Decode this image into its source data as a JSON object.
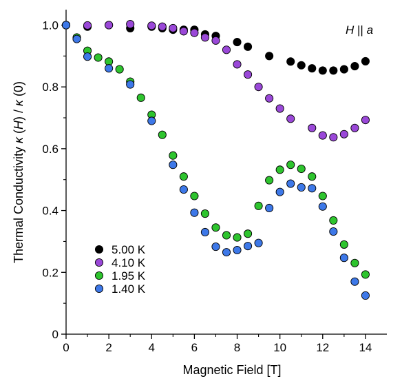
{
  "chart_data": {
    "type": "scatter",
    "xlabel": "Magnetic Field [T]",
    "ylabel_parts": [
      "Thermal Conductivity  ",
      "κ",
      " (",
      "H",
      ") / ",
      "κ",
      " (0)"
    ],
    "annotation": "H || a",
    "xlim": [
      0,
      15
    ],
    "ylim": [
      0,
      1.05
    ],
    "xticks": [
      0,
      2,
      4,
      6,
      8,
      10,
      12,
      14
    ],
    "yticks": [
      0,
      0.2,
      0.4,
      0.6,
      0.8,
      1.0
    ],
    "xtick_labels": [
      "0",
      "2",
      "4",
      "6",
      "8",
      "10",
      "12",
      "14"
    ],
    "ytick_labels": [
      "0",
      "0.2",
      "0.4",
      "0.6",
      "0.8",
      "1.0"
    ],
    "grid": false,
    "legend_position": "bottom-left",
    "series": [
      {
        "name": "5.00 K",
        "color": "#000000",
        "x": [
          0,
          1,
          2,
          3,
          4,
          4.5,
          5,
          5.5,
          6,
          6.5,
          7,
          8,
          8.5,
          9.5,
          10.5,
          11,
          11.5,
          12,
          12.5,
          13,
          13.5,
          14
        ],
        "y": [
          1.0,
          0.995,
          1.0,
          0.99,
          0.995,
          0.99,
          0.985,
          0.985,
          0.985,
          0.97,
          0.965,
          0.945,
          0.93,
          0.9,
          0.882,
          0.87,
          0.86,
          0.853,
          0.853,
          0.857,
          0.867,
          0.883
        ]
      },
      {
        "name": "4.10 K",
        "color": "#9a48d8",
        "x": [
          0,
          1,
          2,
          3,
          4,
          4.5,
          5,
          5.5,
          6,
          6.5,
          7,
          7.5,
          8,
          8.5,
          9,
          9.5,
          10,
          10.5,
          11.5,
          12,
          12.5,
          13,
          13.5,
          14
        ],
        "y": [
          1.0,
          0.999,
          1.0,
          1.003,
          0.998,
          0.995,
          0.99,
          0.98,
          0.975,
          0.96,
          0.95,
          0.92,
          0.873,
          0.84,
          0.8,
          0.763,
          0.73,
          0.697,
          0.667,
          0.643,
          0.637,
          0.647,
          0.667,
          0.693
        ]
      },
      {
        "name": "1.95 K",
        "color": "#2ec42e",
        "x": [
          0,
          0.5,
          1,
          1.5,
          2,
          2.5,
          3,
          3.5,
          4,
          4.5,
          5,
          5.5,
          6,
          6.5,
          7,
          7.5,
          8,
          8.5,
          9,
          9.5,
          10,
          10.5,
          11,
          11.5,
          12,
          12.5,
          13,
          13.5,
          14
        ],
        "y": [
          1.0,
          0.96,
          0.917,
          0.895,
          0.882,
          0.857,
          0.817,
          0.765,
          0.71,
          0.645,
          0.578,
          0.51,
          0.447,
          0.39,
          0.345,
          0.32,
          0.313,
          0.325,
          0.415,
          0.498,
          0.532,
          0.548,
          0.535,
          0.51,
          0.447,
          0.368,
          0.29,
          0.23,
          0.193
        ]
      },
      {
        "name": "1.40 K",
        "color": "#3d78e8",
        "x": [
          0,
          0.5,
          1,
          2,
          3,
          4,
          5,
          5.5,
          6,
          6.5,
          7,
          7.5,
          8,
          8.5,
          9,
          9.5,
          10,
          10.5,
          11,
          11.5,
          12,
          12.5,
          13,
          13.5,
          14
        ],
        "y": [
          1.0,
          0.955,
          0.898,
          0.86,
          0.808,
          0.69,
          0.548,
          0.468,
          0.393,
          0.33,
          0.283,
          0.265,
          0.272,
          0.285,
          0.295,
          0.408,
          0.46,
          0.487,
          0.475,
          0.472,
          0.413,
          0.332,
          0.247,
          0.17,
          0.125
        ]
      }
    ]
  }
}
